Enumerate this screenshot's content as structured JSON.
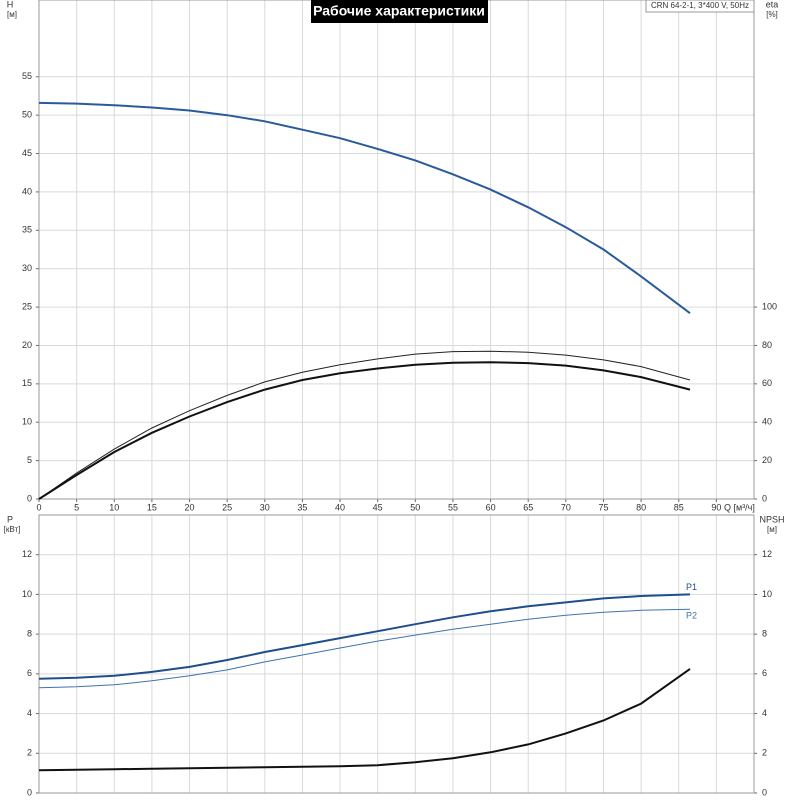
{
  "chart_data": [
    {
      "type": "line",
      "title": "Рабочие характеристики",
      "annotation": "CRN 64-2-1, 3*400 V, 50Hz",
      "ylabel": "H",
      "yunit": "[м]",
      "y2label": "eta",
      "y2unit": "[%]",
      "xlabel": "Q [м³/ч]",
      "grid": true,
      "x": [
        0,
        5,
        10,
        15,
        20,
        25,
        30,
        35,
        40,
        45,
        50,
        55,
        60,
        65,
        70,
        75,
        80,
        86.5
      ],
      "xlim": [
        0,
        95
      ],
      "xticks": [
        0,
        5,
        10,
        15,
        20,
        25,
        30,
        35,
        40,
        45,
        50,
        55,
        60,
        65,
        70,
        75,
        80,
        85,
        90
      ],
      "ylim": [
        0,
        65
      ],
      "yticks": [
        0,
        5,
        10,
        15,
        20,
        25,
        30,
        35,
        40,
        45,
        50,
        55
      ],
      "y2lim": [
        0,
        260
      ],
      "y2ticks": [
        0,
        20,
        40,
        60,
        80,
        100
      ],
      "series": [
        {
          "color": "#2b5a9b",
          "linewidth": 2,
          "values": [
            51.6,
            51.5,
            51.3,
            51.0,
            50.6,
            50.0,
            49.2,
            48.1,
            47.0,
            45.6,
            44.1,
            42.3,
            40.3,
            38.0,
            35.4,
            32.5,
            29.0,
            24.2
          ]
        },
        {
          "color": "#222222",
          "linewidth": 1,
          "axis": "y2",
          "values": [
            0,
            13.5,
            26,
            37,
            46,
            54,
            61,
            66,
            70,
            73,
            75.5,
            76.8,
            77,
            76.5,
            75,
            72.5,
            69,
            62
          ]
        },
        {
          "color": "#111111",
          "linewidth": 2,
          "axis": "y2",
          "values": [
            0,
            12.5,
            24.5,
            34.5,
            43,
            50.5,
            57,
            62,
            65.5,
            68,
            70,
            71,
            71.3,
            70.8,
            69.5,
            67,
            63.5,
            57
          ]
        }
      ]
    },
    {
      "type": "line",
      "ylabel": "P",
      "yunit": "[кВт]",
      "y2label": "NPSH",
      "y2unit": "[м]",
      "grid": true,
      "x": [
        0,
        5,
        10,
        15,
        20,
        25,
        30,
        35,
        40,
        45,
        50,
        55,
        60,
        65,
        70,
        75,
        80,
        86.5
      ],
      "xlim": [
        0,
        95
      ],
      "ylim": [
        0,
        14
      ],
      "yticks": [
        0,
        2,
        4,
        6,
        8,
        10,
        12
      ],
      "y2lim": [
        0,
        14
      ],
      "y2ticks": [
        0,
        2,
        4,
        6,
        8,
        10,
        12
      ],
      "series": [
        {
          "name": "P1",
          "color": "#1f4e8c",
          "linewidth": 2,
          "values": [
            5.75,
            5.8,
            5.9,
            6.1,
            6.35,
            6.7,
            7.1,
            7.45,
            7.8,
            8.15,
            8.5,
            8.85,
            9.15,
            9.4,
            9.6,
            9.8,
            9.92,
            10.0
          ]
        },
        {
          "name": "P2",
          "color": "#3f72b0",
          "linewidth": 1,
          "values": [
            5.3,
            5.35,
            5.45,
            5.65,
            5.9,
            6.2,
            6.6,
            6.95,
            7.3,
            7.65,
            7.95,
            8.25,
            8.5,
            8.75,
            8.95,
            9.1,
            9.2,
            9.25
          ]
        },
        {
          "color": "#111111",
          "linewidth": 2,
          "axis": "y2",
          "values": [
            1.15,
            1.17,
            1.2,
            1.22,
            1.25,
            1.27,
            1.3,
            1.32,
            1.35,
            1.4,
            1.55,
            1.75,
            2.05,
            2.45,
            3.0,
            3.65,
            4.5,
            6.25
          ]
        }
      ]
    }
  ]
}
